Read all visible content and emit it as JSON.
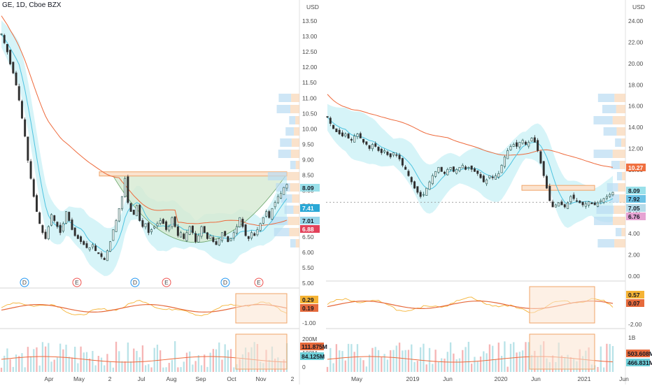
{
  "chart_data": [
    {
      "type": "candlestick",
      "title": "GE, 1D, Cboe BZX",
      "currency": "USD",
      "x_labels": [
        "Apr",
        "May",
        "2",
        "Jul",
        "Aug",
        "Sep",
        "Oct",
        "Nov",
        "2"
      ],
      "y_ticks": [
        "13.50",
        "13.00",
        "12.50",
        "12.00",
        "11.50",
        "11.00",
        "10.50",
        "10.00",
        "9.50",
        "9.00",
        "8.50",
        "8.00",
        "7.50",
        "7.00",
        "6.50",
        "6.00",
        "5.50",
        "5.00"
      ],
      "ylim": [
        4.9,
        14.0
      ],
      "close_path": [
        13.2,
        12.9,
        12.6,
        12.2,
        11.9,
        11.5,
        11.0,
        10.4,
        9.8,
        9.0,
        8.4,
        7.8,
        7.3,
        6.9,
        6.6,
        6.4,
        6.8,
        7.2,
        7.0,
        6.8,
        6.6,
        6.9,
        7.3,
        7.0,
        6.7,
        6.5,
        6.4,
        6.3,
        6.2,
        6.1,
        6.1,
        6.2,
        6.0,
        5.9,
        5.8,
        5.7,
        6.0,
        6.3,
        6.7,
        7.0,
        7.4,
        7.8,
        8.4,
        7.6,
        7.3,
        7.2,
        7.5,
        7.0,
        6.8,
        6.9,
        6.6,
        6.7,
        6.8,
        6.9,
        7.0,
        6.9,
        6.7,
        6.8,
        7.1,
        6.8,
        6.5,
        6.6,
        6.4,
        6.6,
        6.8,
        6.6,
        6.3,
        6.5,
        6.8,
        6.6,
        6.4,
        6.5,
        6.3,
        6.2,
        6.4,
        6.6,
        6.5,
        6.3,
        6.4,
        6.6,
        6.8,
        7.1,
        6.8,
        6.5,
        6.4,
        6.6,
        6.5,
        6.7,
        6.9,
        7.1,
        7.3,
        7.1,
        7.4,
        7.6,
        7.8,
        7.9,
        8.1,
        8.2
      ],
      "annotations": {
        "resistance_level": 8.55,
        "events": [
          "D",
          "E",
          "D",
          "E",
          "D",
          "E"
        ]
      },
      "last_prices": [
        "8.09",
        "7.41",
        "7.01",
        "6.88"
      ],
      "indicator": {
        "ticks": [
          "0.29",
          "0.19",
          "-1.00"
        ]
      },
      "volume": {
        "ticks": [
          "200M",
          "100M",
          "0"
        ],
        "last_values": [
          "111.875M",
          "84.125M"
        ]
      }
    },
    {
      "type": "candlestick",
      "currency": "USD",
      "x_labels": [
        "May",
        "2019",
        "Jun",
        "2020",
        "Jun",
        "2021",
        "Jun"
      ],
      "y_ticks": [
        "24.00",
        "22.00",
        "20.00",
        "18.00",
        "16.00",
        "14.00",
        "12.00",
        "10.00",
        "8.00",
        "6.00",
        "4.00",
        "2.00",
        "0.00"
      ],
      "ylim": [
        -0.5,
        25.5
      ],
      "close_path": [
        15.2,
        14.6,
        14.1,
        13.8,
        13.6,
        13.4,
        13.6,
        13.2,
        13.0,
        13.4,
        13.6,
        13.2,
        12.8,
        12.6,
        12.2,
        12.6,
        12.4,
        12.0,
        11.8,
        12.0,
        11.6,
        11.4,
        11.8,
        11.6,
        11.2,
        10.6,
        10.2,
        9.6,
        9.0,
        8.4,
        8.0,
        7.6,
        7.8,
        8.4,
        9.0,
        9.6,
        10.0,
        10.4,
        10.0,
        9.8,
        10.2,
        10.4,
        10.0,
        10.2,
        10.4,
        10.6,
        10.2,
        10.4,
        10.2,
        10.0,
        9.8,
        9.4,
        9.0,
        9.2,
        9.6,
        9.4,
        9.6,
        9.8,
        10.6,
        11.4,
        12.0,
        12.4,
        12.6,
        12.4,
        12.8,
        13.0,
        12.6,
        12.8,
        13.2,
        12.8,
        12.0,
        10.8,
        9.6,
        8.4,
        7.2,
        6.6,
        6.8,
        7.0,
        6.8,
        6.6,
        7.0,
        7.6,
        7.4,
        7.2,
        7.0,
        6.8,
        6.9,
        7.1,
        6.9,
        6.8,
        7.0,
        7.2,
        7.4,
        7.6,
        7.8,
        8.0
      ],
      "annotations": {
        "resistance_level": 8.4
      },
      "last_prices": [
        "10.27",
        "8.09",
        "7.92",
        "7.05",
        "6.76"
      ],
      "indicator": {
        "ticks": [
          "0.57",
          "0.07",
          "-2.00"
        ]
      },
      "volume": {
        "ticks": [
          "1B"
        ],
        "last_values": [
          "503.608M",
          "466.831M"
        ]
      }
    }
  ],
  "colors": {
    "up": "#26a69a",
    "down": "#ef5350",
    "ma_fast": "#4dc3e0",
    "ma_slow": "#ee6a3c",
    "band": "#c8f0f6",
    "macd": "#f5b335",
    "signal": "#e66a3c",
    "box_fill": "#fbe3cf",
    "box_stroke": "#f0a468",
    "cup_fill": "#d6ead2",
    "event_d": "#2196f3",
    "event_e": "#ef5350"
  }
}
